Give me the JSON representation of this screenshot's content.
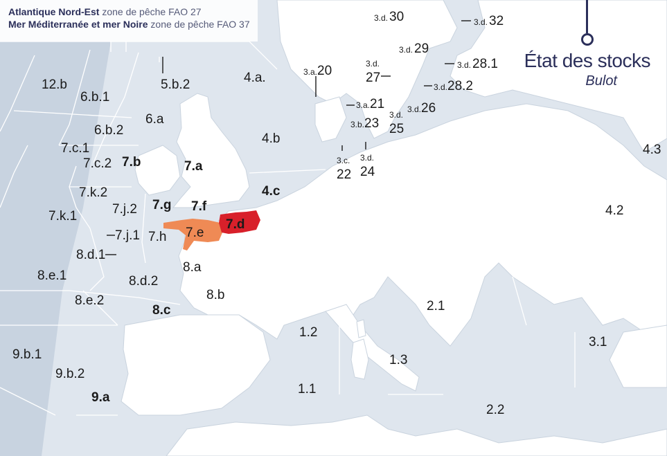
{
  "legend": {
    "line1_strong": "Atlantique Nord-Est",
    "line1_rest": " zone de pêche FAO 27",
    "line2_strong": "Mer Méditerranée et mer Noire",
    "line2_rest": " zone de pêche FAO 37"
  },
  "title": {
    "main": "État des stocks",
    "species": "Bulot"
  },
  "colors": {
    "sea": "#dfe6ee",
    "deep_sea": "#c8d3e0",
    "land": "#ffffff",
    "zone_line": "#ffffff",
    "zone_7d": "#d8202a",
    "zone_7e": "#ef8a55",
    "accent": "#2b2f5a"
  },
  "zones": {
    "z12b": "12.b",
    "z6b1": "6.b.1",
    "z6b2": "6.b.2",
    "z6a": "6.a",
    "z5b2": "5.b.2",
    "z4a": "4.a.",
    "z4b": "4.b",
    "z4c": "4.c",
    "z7c1": "7.c.1",
    "z7c2": "7.c.2",
    "z7b": "7.b",
    "z7a": "7.a",
    "z7k2": "7.k.2",
    "z7k1": "7.k.1",
    "z7j2": "7.j.2",
    "z7j1": "7.j.1",
    "z7g": "7.g",
    "z7f": "7.f",
    "z7e": "7.e",
    "z7d": "7.d",
    "z7h": "7.h",
    "z8d1": "8.d.1",
    "z8a": "8.a",
    "z8e1": "8.e.1",
    "z8d2": "8.d.2",
    "z8b": "8.b",
    "z8e2": "8.e.2",
    "z8c": "8.c",
    "z9b1": "9.b.1",
    "z9b2": "9.b.2",
    "z9a": "9.a",
    "z3a20_pre": "3.a.",
    "z3a20": "20",
    "z3a21_pre": "3.a.",
    "z3a21": "21",
    "z3b23_pre": "3.b.",
    "z3b23": "23",
    "z3c22_pre": "3.c.",
    "z3c22": "22",
    "z3d24_pre": "3.d.",
    "z3d24": "24",
    "z3d25_pre": "3.d.",
    "z3d25": "25",
    "z3d26_pre": "3.d.",
    "z3d26": "26",
    "z3d27_pre": "3.d.",
    "z3d27": "27",
    "z3d28_1_pre": "3.d.",
    "z3d28_1": "28.1",
    "z3d28_2_pre": "3.d.",
    "z3d28_2": "28.2",
    "z3d29_pre": "3.d.",
    "z3d29": "29",
    "z3d30_pre": "3.d.",
    "z3d30": "30",
    "z3d32_pre": "3.d.",
    "z3d32": "32",
    "z1_1": "1.1",
    "z1_2": "1.2",
    "z1_3": "1.3",
    "z2_1": "2.1",
    "z2_2": "2.2",
    "z3_1": "3.1",
    "z4_2": "4.2",
    "z4_3": "4.3"
  },
  "status": {
    "highlighted_zones": [
      "7.d",
      "7.e"
    ]
  }
}
